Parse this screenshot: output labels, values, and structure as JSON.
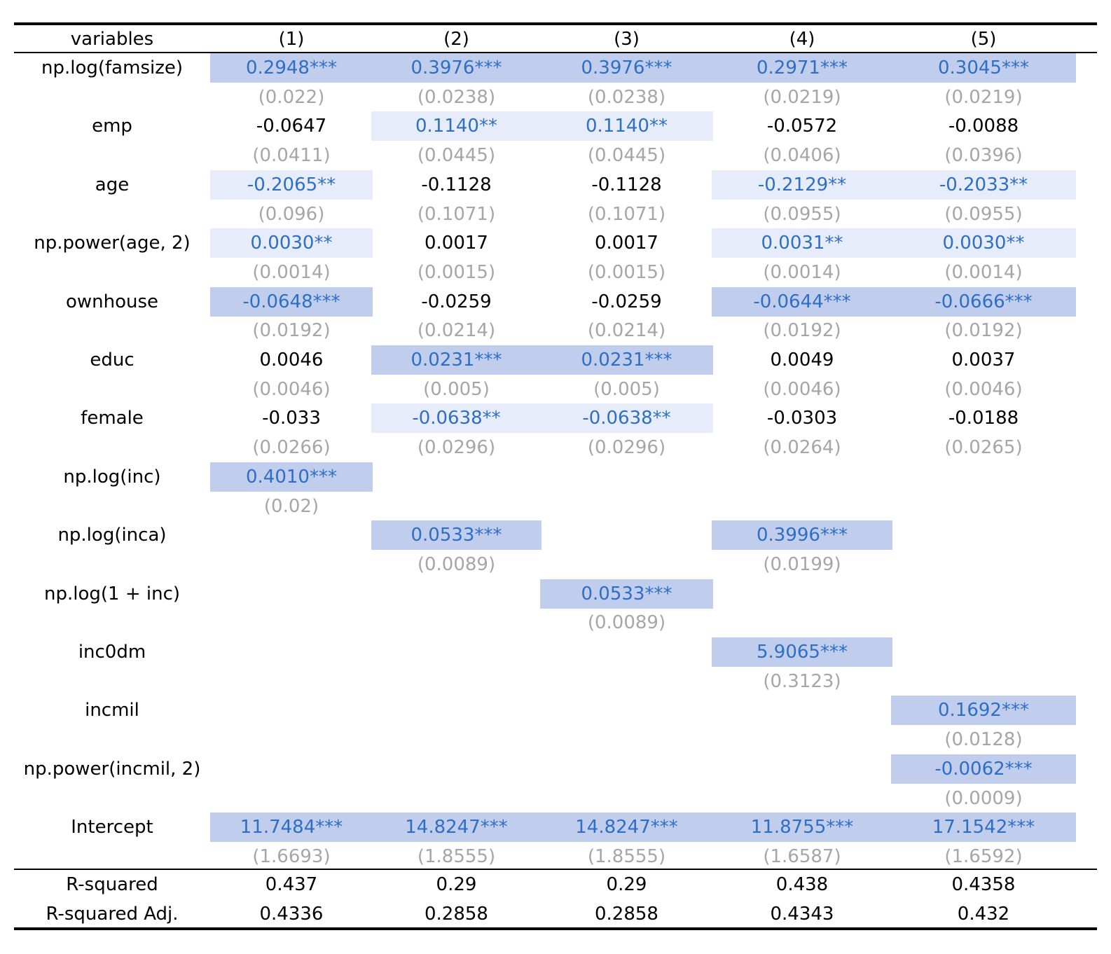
{
  "table": {
    "headers": [
      "variables",
      "(1)",
      "(2)",
      "(3)",
      "(4)",
      "(5)"
    ],
    "rows": [
      {
        "var": "np.log(famsize)",
        "coef": [
          "0.2948***",
          "0.3976***",
          "0.3976***",
          "0.2971***",
          "0.3045***"
        ],
        "se": [
          "(0.022)",
          "(0.0238)",
          "(0.0238)",
          "(0.0219)",
          "(0.0219)"
        ]
      },
      {
        "var": "emp",
        "coef": [
          "-0.0647",
          "0.1140**",
          "0.1140**",
          "-0.0572",
          "-0.0088"
        ],
        "se": [
          "(0.0411)",
          "(0.0445)",
          "(0.0445)",
          "(0.0406)",
          "(0.0396)"
        ]
      },
      {
        "var": "age",
        "coef": [
          "-0.2065**",
          "-0.1128",
          "-0.1128",
          "-0.2129**",
          "-0.2033**"
        ],
        "se": [
          "(0.096)",
          "(0.1071)",
          "(0.1071)",
          "(0.0955)",
          "(0.0955)"
        ]
      },
      {
        "var": "np.power(age, 2)",
        "coef": [
          "0.0030**",
          "0.0017",
          "0.0017",
          "0.0031**",
          "0.0030**"
        ],
        "se": [
          "(0.0014)",
          "(0.0015)",
          "(0.0015)",
          "(0.0014)",
          "(0.0014)"
        ]
      },
      {
        "var": "ownhouse",
        "coef": [
          "-0.0648***",
          "-0.0259",
          "-0.0259",
          "-0.0644***",
          "-0.0666***"
        ],
        "se": [
          "(0.0192)",
          "(0.0214)",
          "(0.0214)",
          "(0.0192)",
          "(0.0192)"
        ]
      },
      {
        "var": "educ",
        "coef": [
          "0.0046",
          "0.0231***",
          "0.0231***",
          "0.0049",
          "0.0037"
        ],
        "se": [
          "(0.0046)",
          "(0.005)",
          "(0.005)",
          "(0.0046)",
          "(0.0046)"
        ]
      },
      {
        "var": "female",
        "coef": [
          "-0.033",
          "-0.0638**",
          "-0.0638**",
          "-0.0303",
          "-0.0188"
        ],
        "se": [
          "(0.0266)",
          "(0.0296)",
          "(0.0296)",
          "(0.0264)",
          "(0.0265)"
        ]
      },
      {
        "var": "np.log(inc)",
        "coef": [
          "0.4010***",
          "",
          "",
          "",
          ""
        ],
        "se": [
          "(0.02)",
          "",
          "",
          "",
          ""
        ]
      },
      {
        "var": "np.log(inca)",
        "coef": [
          "",
          "0.0533***",
          "",
          "0.3996***",
          ""
        ],
        "se": [
          "",
          "(0.0089)",
          "",
          "(0.0199)",
          ""
        ]
      },
      {
        "var": "np.log(1 + inc)",
        "coef": [
          "",
          "",
          "0.0533***",
          "",
          ""
        ],
        "se": [
          "",
          "",
          "(0.0089)",
          "",
          ""
        ]
      },
      {
        "var": "inc0dm",
        "coef": [
          "",
          "",
          "",
          "5.9065***",
          ""
        ],
        "se": [
          "",
          "",
          "",
          "(0.3123)",
          ""
        ]
      },
      {
        "var": "incmil",
        "coef": [
          "",
          "",
          "",
          "",
          "0.1692***"
        ],
        "se": [
          "",
          "",
          "",
          "",
          "(0.0128)"
        ]
      },
      {
        "var": "np.power(incmil, 2)",
        "coef": [
          "",
          "",
          "",
          "",
          "-0.0062***"
        ],
        "se": [
          "",
          "",
          "",
          "",
          "(0.0009)"
        ]
      },
      {
        "var": "Intercept",
        "coef": [
          "11.7484***",
          "14.8247***",
          "14.8247***",
          "11.8755***",
          "17.1542***"
        ],
        "se": [
          "(1.6693)",
          "(1.8555)",
          "(1.8555)",
          "(1.6587)",
          "(1.6592)"
        ]
      }
    ],
    "stats": [
      {
        "label": "R-squared",
        "values": [
          "0.437",
          "0.29",
          "0.29",
          "0.438",
          "0.4358"
        ]
      },
      {
        "label": "R-squared Adj.",
        "values": [
          "0.4336",
          "0.2858",
          "0.2858",
          "0.4343",
          "0.432"
        ]
      }
    ]
  },
  "colors": {
    "significance_1pct_bg": "#c0cdec",
    "significance_5pct_bg": "#e7ecfa",
    "significant_text": "#2e6fc4",
    "std_error_text": "#a6a6a6"
  }
}
